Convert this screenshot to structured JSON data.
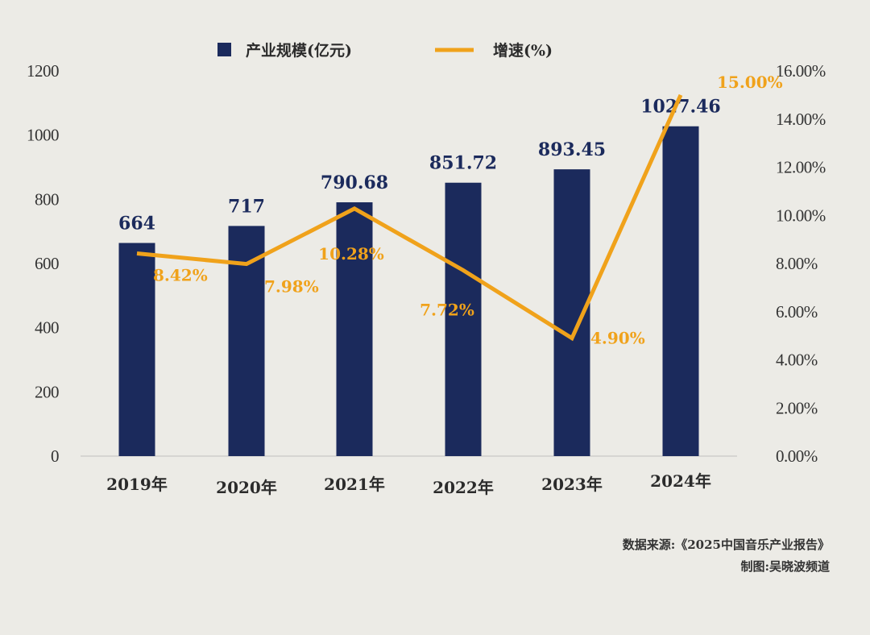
{
  "chart_data": {
    "type": "bar+line",
    "categories": [
      "2019年",
      "2020年",
      "2021年",
      "2022年",
      "2023年",
      "2024年"
    ],
    "series": [
      {
        "name": "产业规模(亿元)",
        "type": "bar",
        "axis": "left",
        "values": [
          664,
          717,
          790.68,
          851.72,
          893.45,
          1027.46
        ],
        "labels": [
          "664",
          "717",
          "790.68",
          "851.72",
          "893.45",
          "1027.46"
        ],
        "color": "#1b2a5c"
      },
      {
        "name": "增速(%)",
        "type": "line",
        "axis": "right",
        "values": [
          8.42,
          7.98,
          10.28,
          7.72,
          4.9,
          15.0
        ],
        "labels": [
          "8.42%",
          "7.98%",
          "10.28%",
          "7.72%",
          "4.90%",
          "15.00%"
        ],
        "color": "#f0a21b"
      }
    ],
    "y_left": {
      "ylim": [
        0,
        1200
      ],
      "ticks": [
        "0",
        "200",
        "400",
        "600",
        "800",
        "1000",
        "1200"
      ]
    },
    "y_right": {
      "ylim": [
        0,
        16
      ],
      "ticks": [
        "0.00%",
        "2.00%",
        "4.00%",
        "6.00%",
        "8.00%",
        "10.00%",
        "12.00%",
        "14.00%",
        "16.00%"
      ]
    },
    "legend_position": "top-center",
    "grid": false
  },
  "footer": {
    "source": "数据来源:《2025中国音乐产业报告》",
    "credit": "制图:吴晓波频道"
  }
}
